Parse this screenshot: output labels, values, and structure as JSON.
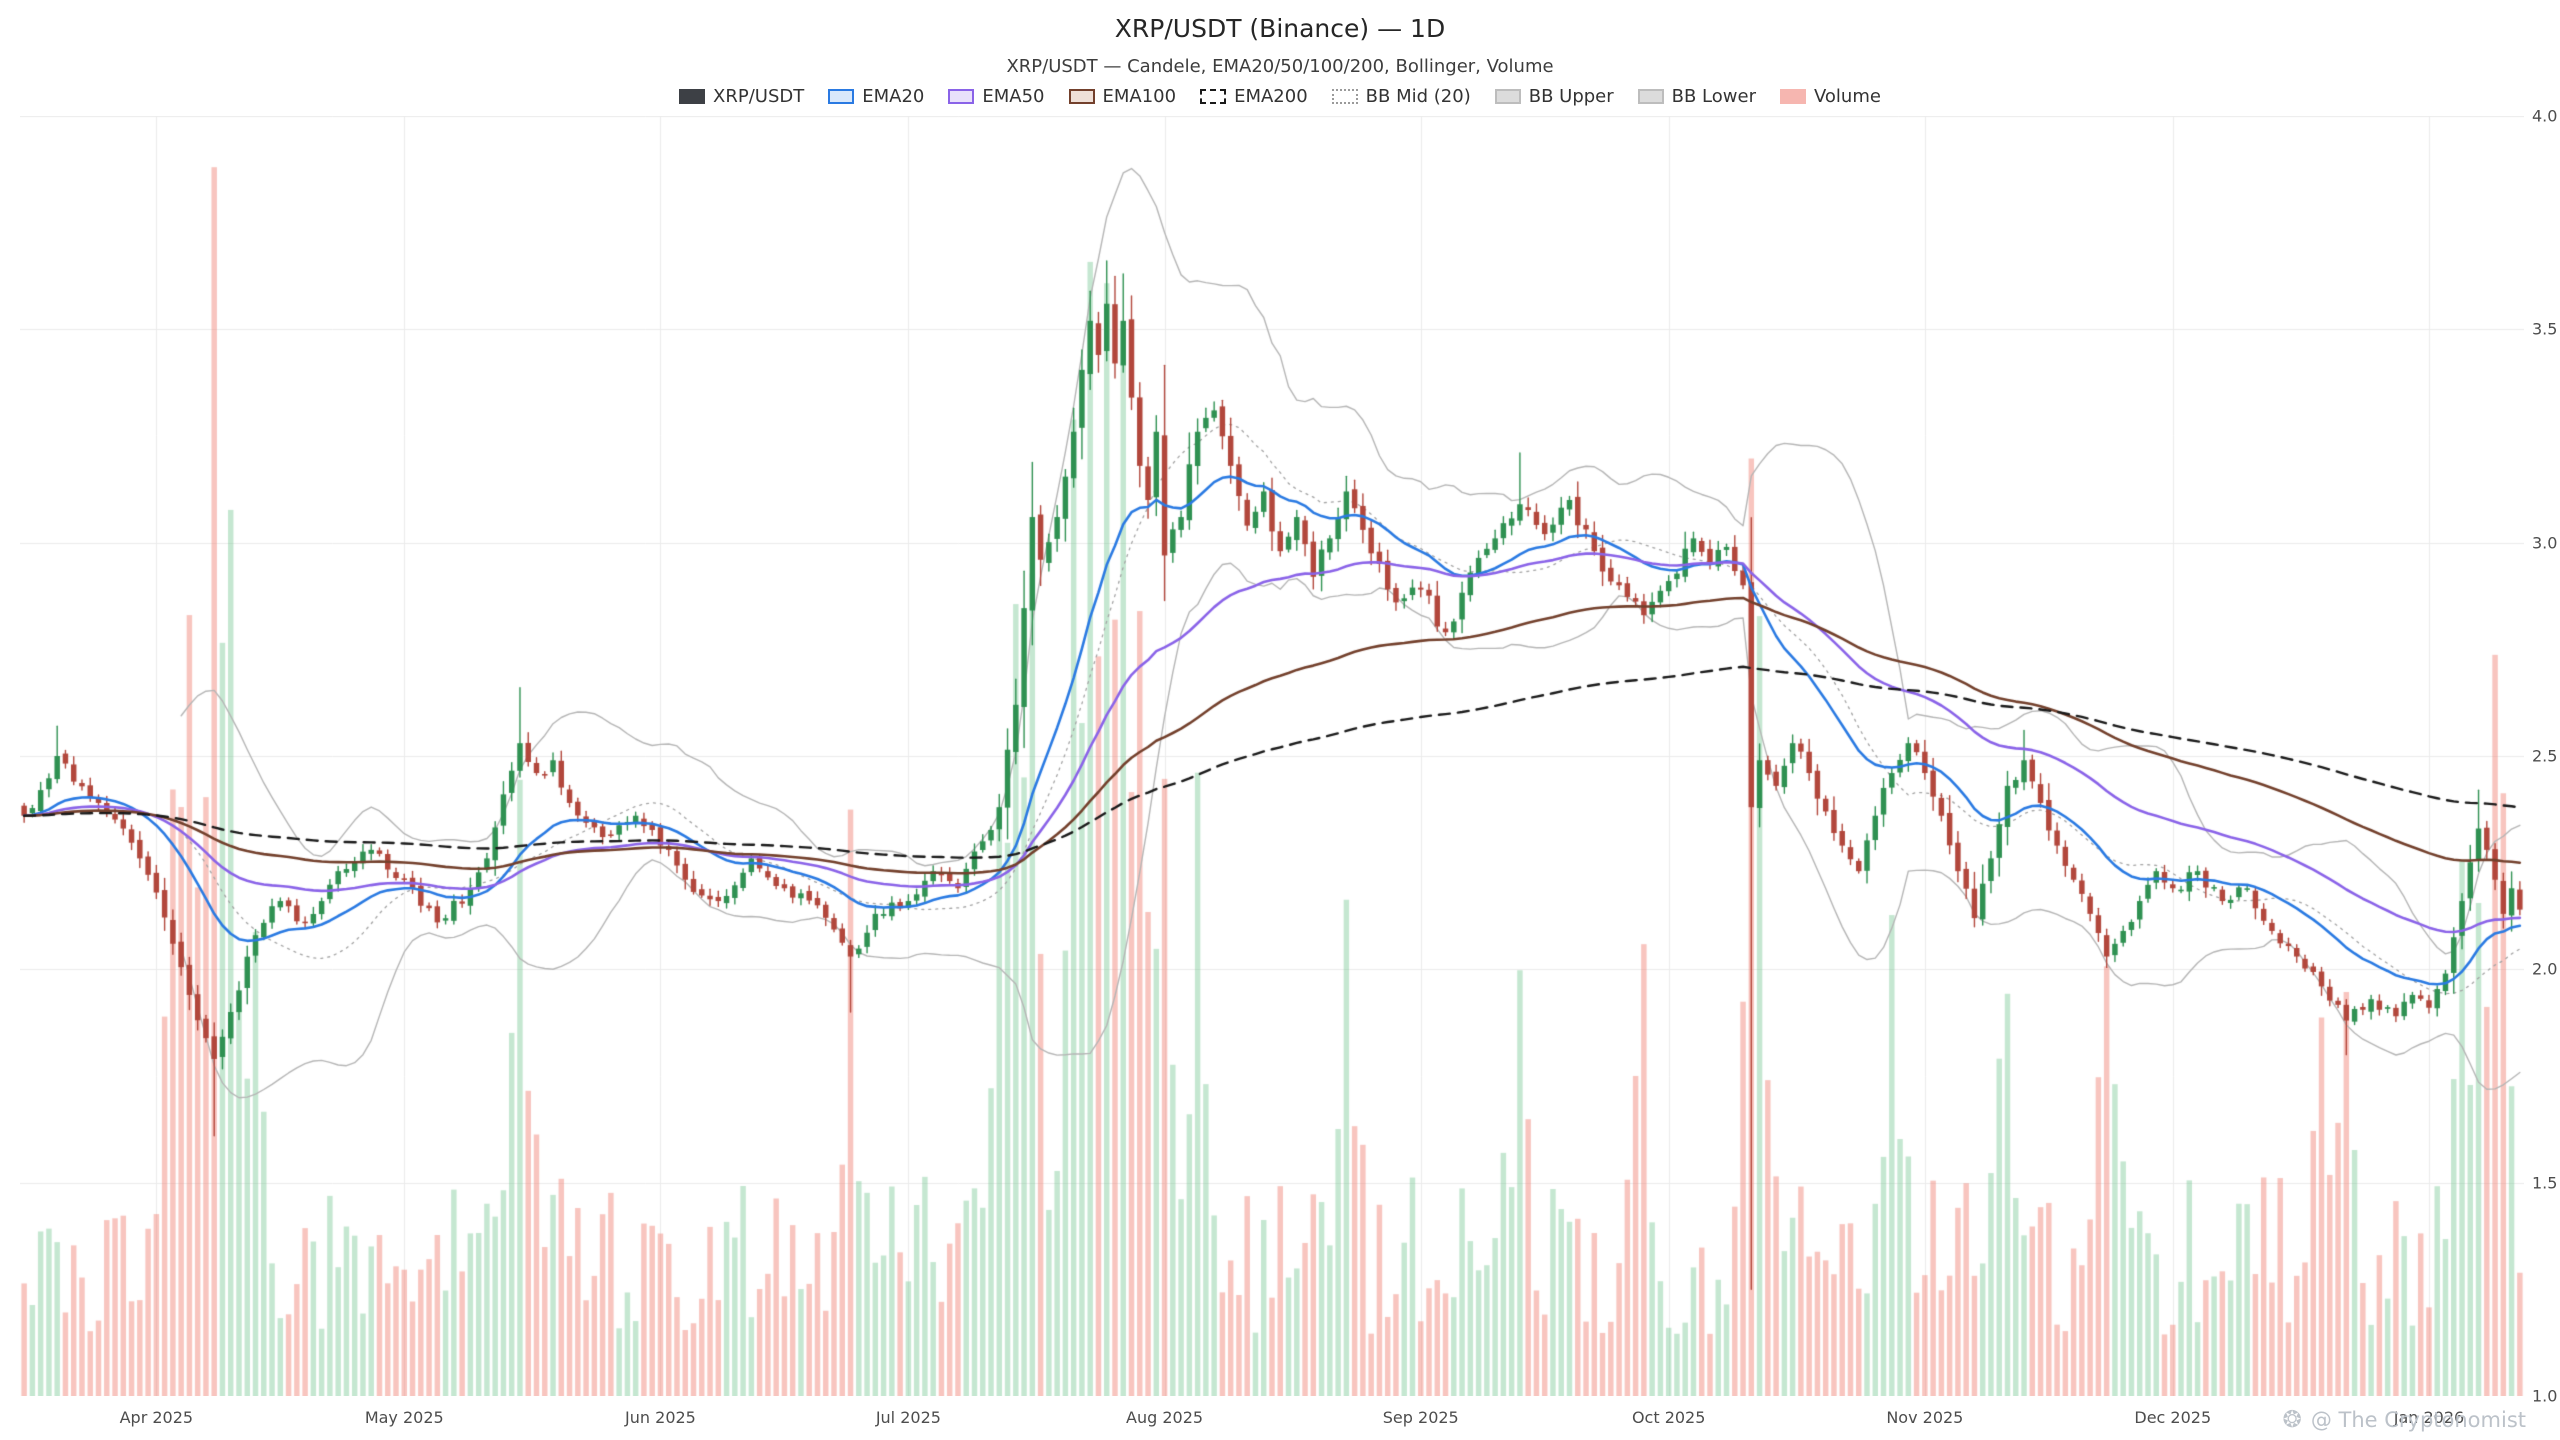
{
  "header": {
    "title": "XRP/USDT (Binance) — 1D",
    "subtitle": "XRP/USDT — Candele, EMA20/50/100/200, Bollinger, Volume"
  },
  "legend": {
    "items": [
      {
        "label": "XRP/USDT",
        "swatch_fill": "#3d4045",
        "swatch_border": "#3d4045",
        "border_style": "solid"
      },
      {
        "label": "EMA20",
        "swatch_fill": "#d9e8fb",
        "swatch_border": "#2a7ae2",
        "border_style": "solid"
      },
      {
        "label": "EMA50",
        "swatch_fill": "#e9e1fb",
        "swatch_border": "#8a63e8",
        "border_style": "solid"
      },
      {
        "label": "EMA100",
        "swatch_fill": "#efe0d8",
        "swatch_border": "#73402c",
        "border_style": "solid"
      },
      {
        "label": "EMA200",
        "swatch_fill": "#ffffff",
        "swatch_border": "#1a1a1a",
        "border_style": "dashed"
      },
      {
        "label": "BB Mid (20)",
        "swatch_fill": "#ffffff",
        "swatch_border": "#9a9a9a",
        "border_style": "dotted"
      },
      {
        "label": "BB Upper",
        "swatch_fill": "#dcdcdc",
        "swatch_border": "#bdbdbd",
        "border_style": "solid"
      },
      {
        "label": "BB Lower",
        "swatch_fill": "#dcdcdc",
        "swatch_border": "#bdbdbd",
        "border_style": "solid"
      },
      {
        "label": "Volume",
        "swatch_fill": "#f6b6b0",
        "swatch_border": "#f6b6b0",
        "border_style": "solid"
      }
    ]
  },
  "watermark": {
    "icon": "❂",
    "text": "@ The Cryptonomist"
  },
  "chart_data": {
    "type": "candlestick",
    "symbol": "XRP/USDT",
    "exchange": "Binance",
    "interval": "1D",
    "title": "XRP/USDT (Binance) — 1D",
    "legend_entries": [
      "XRP/USDT",
      "EMA20",
      "EMA50",
      "EMA100",
      "EMA200",
      "BB Mid (20)",
      "BB Upper",
      "BB Lower",
      "Volume"
    ],
    "y_axis": {
      "min": 1.0,
      "max": 4.0,
      "ticks": [
        {
          "label": "4.0",
          "value": 4.0
        },
        {
          "label": "3.5",
          "value": 3.5
        },
        {
          "label": "3.0",
          "value": 3.0
        },
        {
          "label": "2.5",
          "value": 2.5
        },
        {
          "label": "2.0",
          "value": 2.0
        },
        {
          "label": "1.5",
          "value": 1.5
        },
        {
          "label": "1.0",
          "value": 1.0
        }
      ]
    },
    "x_range": {
      "days_total": 303
    },
    "x_ticks": [
      {
        "label": "Apr 2025",
        "day": 16
      },
      {
        "label": "May 2025",
        "day": 46
      },
      {
        "label": "Jun 2025",
        "day": 77
      },
      {
        "label": "Jul 2025",
        "day": 107
      },
      {
        "label": "Aug 2025",
        "day": 138
      },
      {
        "label": "Sep 2025",
        "day": 169
      },
      {
        "label": "Oct 2025",
        "day": 199
      },
      {
        "label": "Nov 2025",
        "day": 230
      },
      {
        "label": "Dec 2025",
        "day": 260
      },
      {
        "label": "Jan 2026",
        "day": 291
      }
    ],
    "price_anchors": [
      [
        0,
        2.36
      ],
      [
        2,
        2.42
      ],
      [
        4,
        2.5
      ],
      [
        6,
        2.44
      ],
      [
        9,
        2.39
      ],
      [
        12,
        2.33
      ],
      [
        14,
        2.26
      ],
      [
        16,
        2.18
      ],
      [
        18,
        2.06
      ],
      [
        20,
        1.94
      ],
      [
        23,
        1.79
      ],
      [
        25,
        1.9
      ],
      [
        28,
        2.08
      ],
      [
        31,
        2.16
      ],
      [
        34,
        2.11
      ],
      [
        38,
        2.23
      ],
      [
        42,
        2.28
      ],
      [
        46,
        2.21
      ],
      [
        50,
        2.11
      ],
      [
        54,
        2.19
      ],
      [
        56,
        2.26
      ],
      [
        58,
        2.41
      ],
      [
        60,
        2.53
      ],
      [
        62,
        2.46
      ],
      [
        64,
        2.49
      ],
      [
        66,
        2.39
      ],
      [
        70,
        2.31
      ],
      [
        74,
        2.36
      ],
      [
        77,
        2.29
      ],
      [
        80,
        2.21
      ],
      [
        84,
        2.16
      ],
      [
        88,
        2.26
      ],
      [
        92,
        2.19
      ],
      [
        96,
        2.15
      ],
      [
        100,
        2.03
      ],
      [
        103,
        2.13
      ],
      [
        107,
        2.16
      ],
      [
        110,
        2.23
      ],
      [
        113,
        2.19
      ],
      [
        116,
        2.3
      ],
      [
        118,
        2.38
      ],
      [
        120,
        2.62
      ],
      [
        122,
        3.06
      ],
      [
        123,
        2.96
      ],
      [
        125,
        3.06
      ],
      [
        127,
        3.26
      ],
      [
        129,
        3.52
      ],
      [
        130,
        3.44
      ],
      [
        131,
        3.56
      ],
      [
        132,
        3.42
      ],
      [
        133,
        3.52
      ],
      [
        134,
        3.34
      ],
      [
        135,
        3.18
      ],
      [
        136,
        3.1
      ],
      [
        137,
        3.26
      ],
      [
        138,
        2.97
      ],
      [
        140,
        3.06
      ],
      [
        142,
        3.26
      ],
      [
        144,
        3.31
      ],
      [
        146,
        3.18
      ],
      [
        148,
        3.04
      ],
      [
        150,
        3.12
      ],
      [
        152,
        2.98
      ],
      [
        154,
        3.06
      ],
      [
        156,
        2.92
      ],
      [
        158,
        3.01
      ],
      [
        160,
        3.12
      ],
      [
        162,
        3.03
      ],
      [
        164,
        2.95
      ],
      [
        166,
        2.86
      ],
      [
        169,
        2.89
      ],
      [
        172,
        2.79
      ],
      [
        175,
        2.93
      ],
      [
        178,
        3.01
      ],
      [
        181,
        3.09
      ],
      [
        184,
        3.02
      ],
      [
        187,
        3.1
      ],
      [
        190,
        2.98
      ],
      [
        193,
        2.9
      ],
      [
        196,
        2.83
      ],
      [
        199,
        2.91
      ],
      [
        202,
        3.01
      ],
      [
        204,
        2.95
      ],
      [
        206,
        2.99
      ],
      [
        208,
        2.9
      ],
      [
        209,
        2.38
      ],
      [
        210,
        2.49
      ],
      [
        212,
        2.43
      ],
      [
        214,
        2.53
      ],
      [
        216,
        2.46
      ],
      [
        218,
        2.37
      ],
      [
        220,
        2.29
      ],
      [
        222,
        2.23
      ],
      [
        224,
        2.36
      ],
      [
        226,
        2.46
      ],
      [
        228,
        2.53
      ],
      [
        230,
        2.46
      ],
      [
        232,
        2.36
      ],
      [
        234,
        2.23
      ],
      [
        236,
        2.12
      ],
      [
        238,
        2.26
      ],
      [
        240,
        2.43
      ],
      [
        242,
        2.49
      ],
      [
        244,
        2.39
      ],
      [
        246,
        2.29
      ],
      [
        248,
        2.21
      ],
      [
        250,
        2.13
      ],
      [
        252,
        2.03
      ],
      [
        254,
        2.09
      ],
      [
        256,
        2.16
      ],
      [
        258,
        2.23
      ],
      [
        260,
        2.19
      ],
      [
        263,
        2.23
      ],
      [
        266,
        2.16
      ],
      [
        269,
        2.19
      ],
      [
        272,
        2.09
      ],
      [
        275,
        2.03
      ],
      [
        278,
        1.96
      ],
      [
        281,
        1.88
      ],
      [
        284,
        1.93
      ],
      [
        287,
        1.89
      ],
      [
        289,
        1.94
      ],
      [
        291,
        1.91
      ],
      [
        293,
        1.99
      ],
      [
        295,
        2.16
      ],
      [
        297,
        2.33
      ],
      [
        298,
        2.28
      ],
      [
        299,
        2.21
      ],
      [
        300,
        2.13
      ],
      [
        301,
        2.19
      ],
      [
        302,
        2.14
      ]
    ],
    "wick_overrides": {
      "4": {
        "high": 2.57
      },
      "23": {
        "low": 1.61
      },
      "60": {
        "high": 2.66
      },
      "100": {
        "low": 1.9
      },
      "131": {
        "high": 3.66
      },
      "133": {
        "high": 3.63
      },
      "181": {
        "high": 3.21
      },
      "209": {
        "low": 1.25
      },
      "242": {
        "high": 2.56
      },
      "281": {
        "low": 1.8
      },
      "297": {
        "high": 2.42
      }
    },
    "volume_spikes": [
      [
        18,
        0.34
      ],
      [
        20,
        0.5
      ],
      [
        23,
        1.0
      ],
      [
        25,
        0.45
      ],
      [
        28,
        0.3
      ],
      [
        60,
        0.33
      ],
      [
        100,
        0.3
      ],
      [
        118,
        0.3
      ],
      [
        120,
        0.42
      ],
      [
        122,
        0.55
      ],
      [
        127,
        0.58
      ],
      [
        129,
        0.72
      ],
      [
        131,
        0.66
      ],
      [
        133,
        0.58
      ],
      [
        135,
        0.48
      ],
      [
        138,
        0.36
      ],
      [
        142,
        0.38
      ],
      [
        160,
        0.28
      ],
      [
        181,
        0.27
      ],
      [
        196,
        0.22
      ],
      [
        209,
        0.52
      ],
      [
        210,
        0.38
      ],
      [
        226,
        0.27
      ],
      [
        240,
        0.26
      ],
      [
        252,
        0.28
      ],
      [
        278,
        0.24
      ],
      [
        281,
        0.26
      ],
      [
        295,
        0.24
      ],
      [
        297,
        0.28
      ],
      [
        299,
        0.34
      ],
      [
        300,
        0.3
      ]
    ],
    "indicators": [
      {
        "name": "EMA20",
        "period": 20,
        "color": "#2a7ae2",
        "dash": false
      },
      {
        "name": "EMA50",
        "period": 50,
        "color": "#8a63e8",
        "dash": false
      },
      {
        "name": "EMA100",
        "period": 100,
        "color": "#73402c",
        "dash": false
      },
      {
        "name": "EMA200",
        "period": 200,
        "color": "#1a1a1a",
        "dash": true
      },
      {
        "name": "Bollinger",
        "period": 20,
        "stddev": 2,
        "band_color": "#b5b5b5",
        "mid_color": "#a3a3a3"
      }
    ],
    "colors": {
      "up": "#2f9152",
      "down": "#b2473c",
      "vol_up": "rgba(126,201,154,0.45)",
      "vol_down": "rgba(242,139,128,0.5)",
      "grid": "#ebebeb",
      "axis_text": "#4d4d4d"
    }
  }
}
